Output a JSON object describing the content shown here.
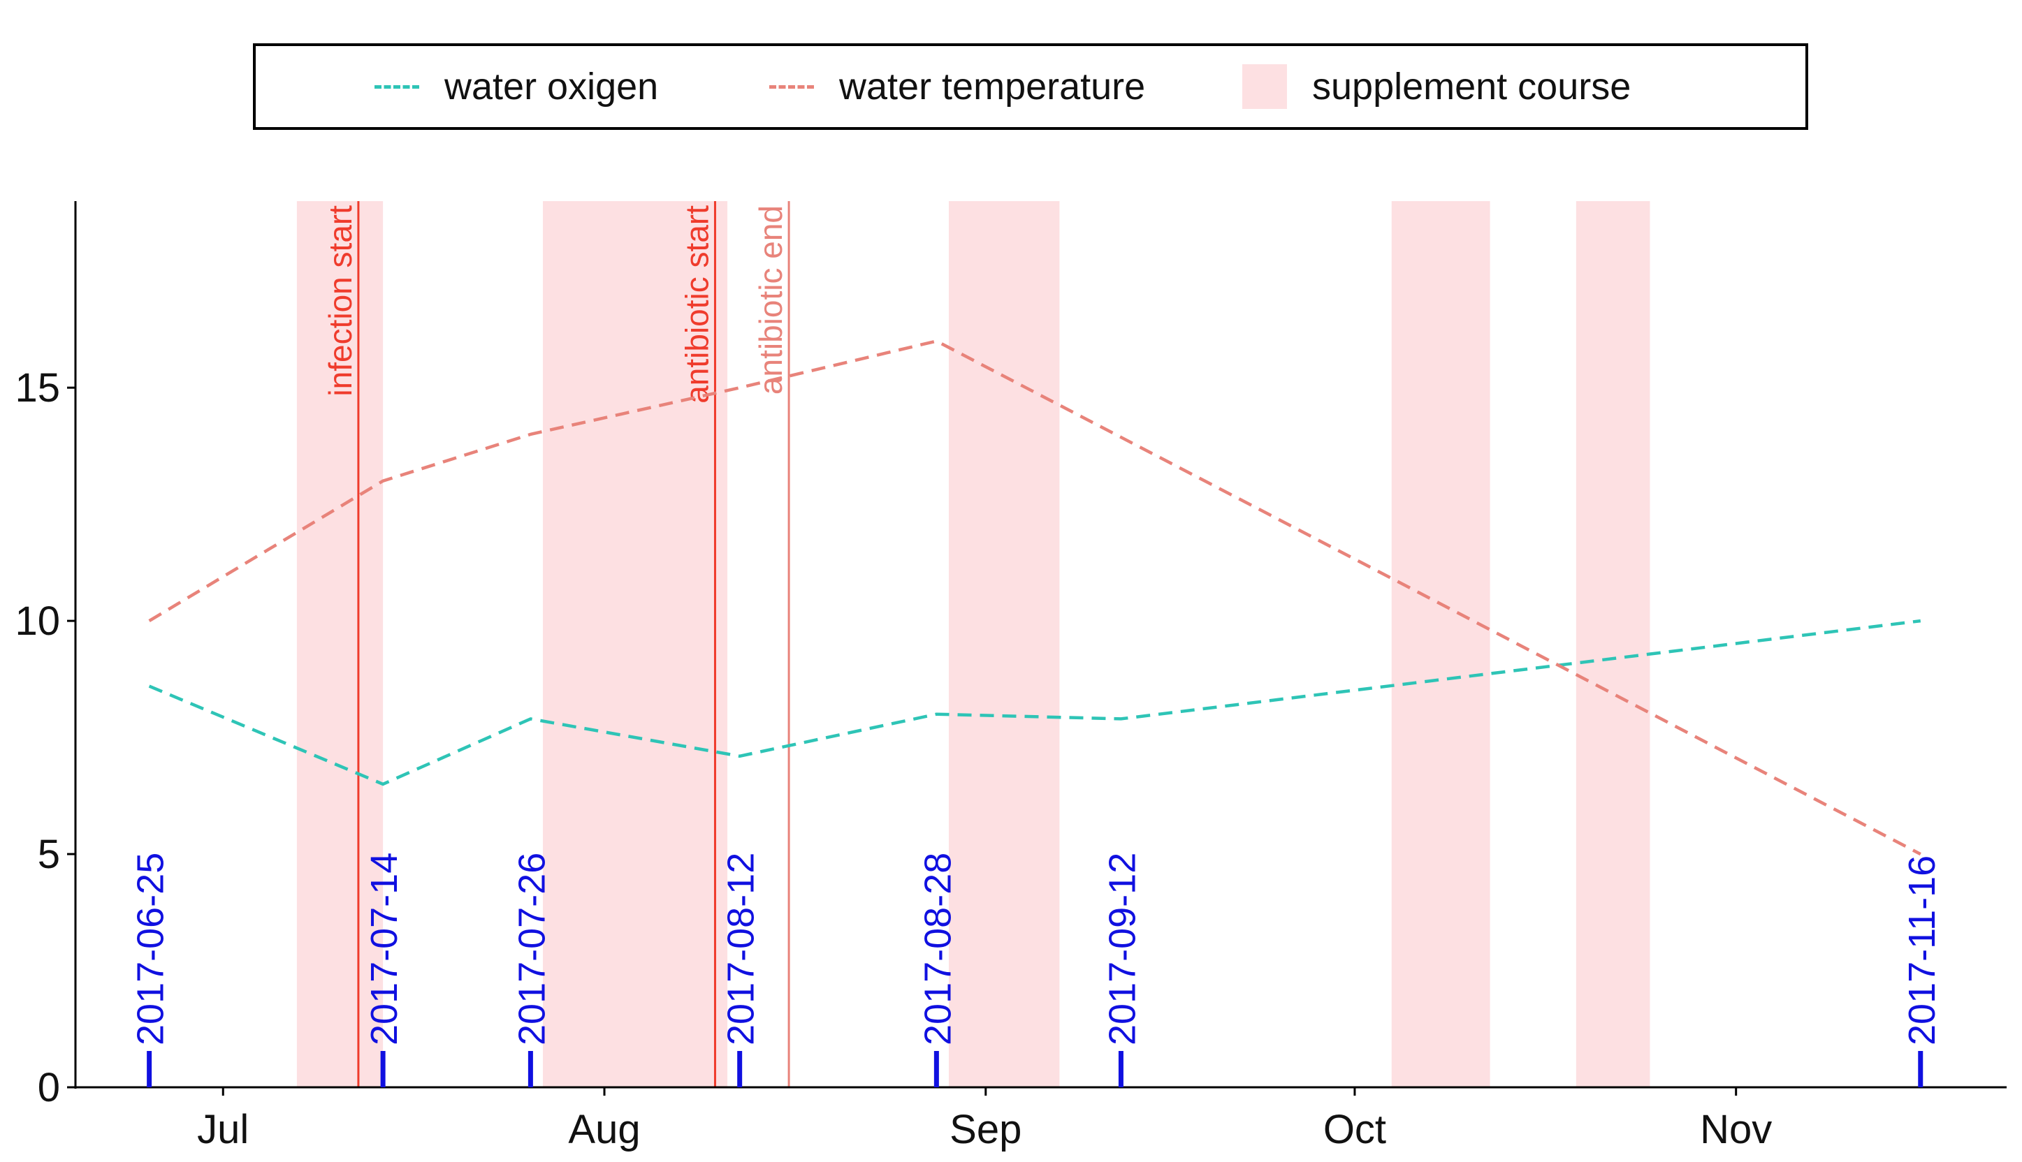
{
  "chart_data": {
    "type": "line",
    "title": "",
    "xlabel": "",
    "ylabel": "",
    "ylim": [
      0,
      19
    ],
    "xlim": [
      "2017-06-19",
      "2017-11-23"
    ],
    "x_ticks": [
      {
        "date": "2017-07-01",
        "label": "Jul"
      },
      {
        "date": "2017-08-01",
        "label": "Aug"
      },
      {
        "date": "2017-09-01",
        "label": "Sep"
      },
      {
        "date": "2017-10-01",
        "label": "Oct"
      },
      {
        "date": "2017-11-01",
        "label": "Nov"
      }
    ],
    "y_ticks": [
      0,
      5,
      10,
      15
    ],
    "series": [
      {
        "name": "water oxigen",
        "color": "#2ec4b6",
        "dashed": true,
        "points": [
          {
            "x": "2017-06-25",
            "y": 8.6
          },
          {
            "x": "2017-07-14",
            "y": 6.5
          },
          {
            "x": "2017-07-26",
            "y": 7.9
          },
          {
            "x": "2017-08-12",
            "y": 7.1
          },
          {
            "x": "2017-08-28",
            "y": 8.0
          },
          {
            "x": "2017-09-12",
            "y": 7.9
          },
          {
            "x": "2017-11-16",
            "y": 10.0
          }
        ]
      },
      {
        "name": "water temperature",
        "color": "#e8837a",
        "dashed": true,
        "points": [
          {
            "x": "2017-06-25",
            "y": 10.0
          },
          {
            "x": "2017-07-14",
            "y": 13.0
          },
          {
            "x": "2017-07-26",
            "y": 14.0
          },
          {
            "x": "2017-08-12",
            "y": 15.0
          },
          {
            "x": "2017-08-28",
            "y": 16.0
          },
          {
            "x": "2017-11-16",
            "y": 5.0
          }
        ]
      }
    ],
    "supplement_course": {
      "name": "supplement course",
      "color": "#fde0e2",
      "periods": [
        [
          "2017-07-07",
          "2017-07-14"
        ],
        [
          "2017-07-27",
          "2017-08-11"
        ],
        [
          "2017-08-29",
          "2017-09-07"
        ],
        [
          "2017-10-04",
          "2017-10-12"
        ],
        [
          "2017-10-19",
          "2017-10-25"
        ]
      ]
    },
    "events": [
      {
        "label": "infection start",
        "date": "2017-07-12",
        "color": "#ef3b2c"
      },
      {
        "label": "antibiotic start",
        "date": "2017-08-10",
        "color": "#ef3b2c"
      },
      {
        "label": "antibiotic end",
        "date": "2017-08-16",
        "color": "#e8837a"
      }
    ],
    "sampling_dates": {
      "color": "#1010e0",
      "dates": [
        "2017-06-25",
        "2017-07-14",
        "2017-07-26",
        "2017-08-12",
        "2017-08-28",
        "2017-09-12",
        "2017-11-16"
      ]
    }
  }
}
